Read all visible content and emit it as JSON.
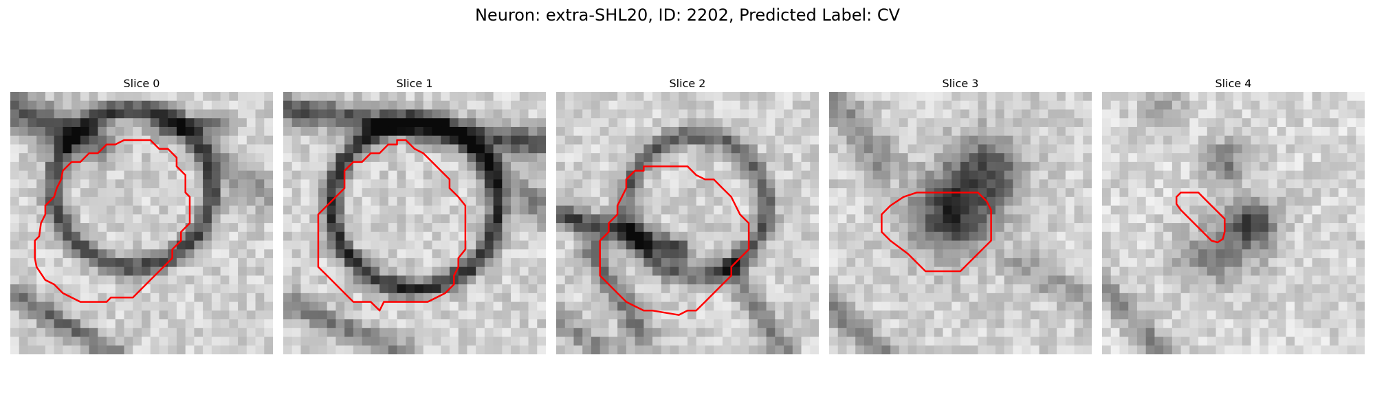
{
  "figure": {
    "title": "Neuron: extra-SHL20, ID: 2202, Predicted Label: CV"
  },
  "panels": [
    {
      "title": "Slice 0"
    },
    {
      "title": "Slice 1"
    },
    {
      "title": "Slice 2"
    },
    {
      "title": "Slice 3"
    },
    {
      "title": "Slice 4"
    }
  ],
  "colors": {
    "contour": "#ff0000",
    "background": "#ffffff"
  }
}
